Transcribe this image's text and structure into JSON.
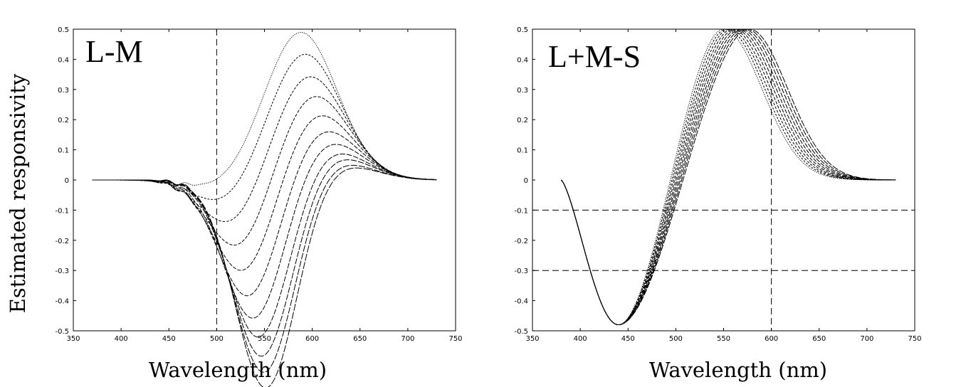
{
  "figure": {
    "ylabel": "Estimated responsivity"
  },
  "chart_data": [
    {
      "type": "line",
      "panel_label": "L-M",
      "xlabel": "Wavelength (nm)",
      "xlim": [
        350,
        750
      ],
      "ylim": [
        -0.5,
        0.5
      ],
      "x_ticks": [
        350,
        400,
        450,
        500,
        550,
        600,
        650,
        700,
        750
      ],
      "x_tick_labels": [
        "350",
        "400",
        "450",
        "500",
        "550",
        "600",
        "650",
        "700",
        "750"
      ],
      "y_ticks": [
        0.5,
        0.4,
        0.3,
        0.2,
        0.1,
        0,
        -0.1,
        -0.2,
        -0.3,
        -0.4,
        -0.5
      ],
      "y_tick_labels": [
        "0.5",
        "0.4",
        "0.3",
        "0.2",
        "0.1",
        "0",
        "-0.1",
        "-0.2",
        "-0.3",
        "-0.4",
        "-0.5"
      ],
      "grid": false,
      "reference_lines": {
        "vertical": [
          500
        ],
        "horizontal": []
      },
      "series": [
        {
          "peak": 0.49,
          "peak_nm": 588,
          "trough": -0.03,
          "trough_nm": 502
        },
        {
          "peak": 0.42,
          "peak_nm": 592,
          "trough": -0.09,
          "trough_nm": 510
        },
        {
          "peak": 0.35,
          "peak_nm": 596,
          "trough": -0.17,
          "trough_nm": 518
        },
        {
          "peak": 0.29,
          "peak_nm": 600,
          "trough": -0.25,
          "trough_nm": 525
        },
        {
          "peak": 0.23,
          "peak_nm": 604,
          "trough": -0.33,
          "trough_nm": 530
        },
        {
          "peak": 0.18,
          "peak_nm": 608,
          "trough": -0.41,
          "trough_nm": 535
        },
        {
          "peak": 0.14,
          "peak_nm": 612,
          "trough": -0.48,
          "trough_nm": 540
        },
        {
          "peak": 0.11,
          "peak_nm": 615,
          "trough": -0.54,
          "trough_nm": 545
        },
        {
          "peak": 0.09,
          "peak_nm": 618,
          "trough": -0.6,
          "trough_nm": 548
        },
        {
          "peak": 0.07,
          "peak_nm": 620,
          "trough": -0.65,
          "trough_nm": 550
        },
        {
          "peak": 0.06,
          "peak_nm": 622,
          "trough": -0.7,
          "trough_nm": 552
        }
      ]
    },
    {
      "type": "line",
      "panel_label": "L+M-S",
      "xlabel": "Wavelength (nm)",
      "xlim": [
        350,
        750
      ],
      "ylim": [
        -0.5,
        0.5
      ],
      "x_ticks": [
        350,
        400,
        450,
        500,
        550,
        600,
        650,
        700,
        750
      ],
      "x_tick_labels": [
        "350",
        "400",
        "450",
        "500",
        "550",
        "600",
        "650",
        "700",
        "750"
      ],
      "y_ticks": [
        0.5,
        0.4,
        0.3,
        0.2,
        0.1,
        0,
        -0.1,
        -0.2,
        -0.3,
        -0.4,
        -0.5
      ],
      "y_tick_labels": [
        "0.5",
        "0.4",
        "0.3",
        "0.2",
        "0.1",
        "0",
        "-0.1",
        "-0.2",
        "-0.3",
        "-0.4",
        "-0.5"
      ],
      "grid": false,
      "reference_lines": {
        "vertical": [
          600
        ],
        "horizontal": [
          -0.1,
          -0.3
        ]
      },
      "series": [
        {
          "peak": 0.5,
          "peak_nm": 550
        },
        {
          "peak": 0.5,
          "peak_nm": 553
        },
        {
          "peak": 0.5,
          "peak_nm": 556
        },
        {
          "peak": 0.5,
          "peak_nm": 559
        },
        {
          "peak": 0.5,
          "peak_nm": 562
        },
        {
          "peak": 0.5,
          "peak_nm": 565
        },
        {
          "peak": 0.5,
          "peak_nm": 568
        },
        {
          "peak": 0.5,
          "peak_nm": 571
        },
        {
          "peak": 0.5,
          "peak_nm": 574
        },
        {
          "peak": 0.5,
          "peak_nm": 577
        }
      ],
      "trough": -0.48,
      "trough_nm": 440,
      "start_nm": 380
    }
  ]
}
